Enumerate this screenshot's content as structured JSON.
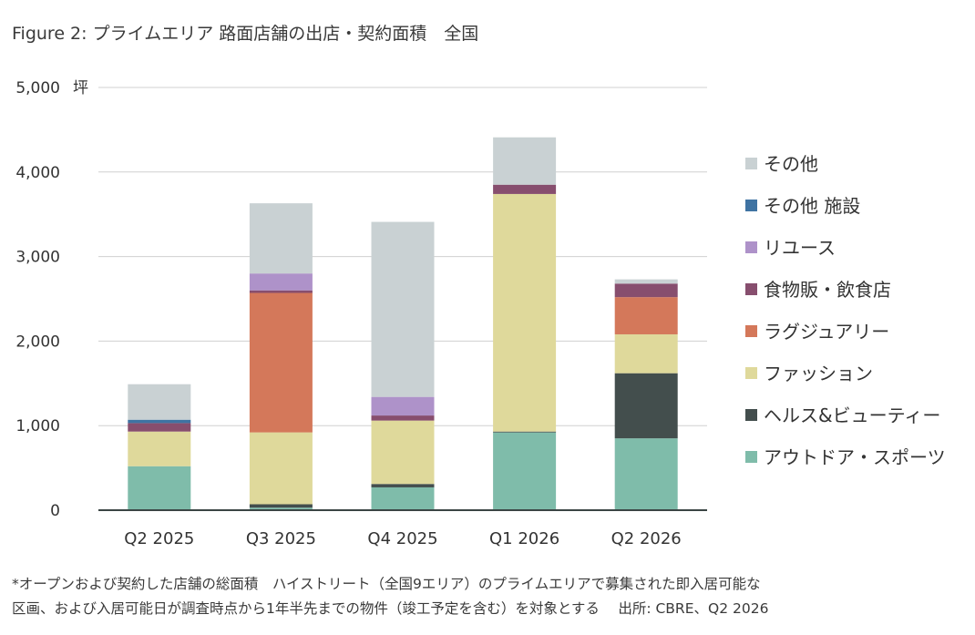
{
  "title": "Figure 2: プライムエリア 路面店舗の出店・契約面積　全国",
  "footnote": {
    "line1": "*オープンおよび契約した店舗の総面積　ハイストリート（全国9エリア）のプライムエリアで募集された即入居可能な",
    "line2": "区画、および入居可能日が調査時点から1年半先までの物件（竣工予定を含む）を対象とする　 出所: CBRE、Q2 2026"
  },
  "chart_data": {
    "type": "bar",
    "stacked": true,
    "title": "Figure 2: プライムエリア 路面店舗の出店・契約面積　全国",
    "ylabel": "坪",
    "ylim": [
      0,
      5000
    ],
    "yticks": [
      0,
      1000,
      2000,
      3000,
      4000,
      5000
    ],
    "ytick_labels": [
      "0",
      "1,000",
      "2,000",
      "3,000",
      "4,000",
      "5,000"
    ],
    "grid": true,
    "legend_position": "right",
    "categories": [
      "Q2 2025",
      "Q3 2025",
      "Q4 2025",
      "Q1 2026",
      "Q2 2026"
    ],
    "series": [
      {
        "name": "アウトドア・スポーツ",
        "color": "#7fbcaa",
        "values": [
          520,
          30,
          270,
          920,
          850
        ]
      },
      {
        "name": "ヘルス&ビューティー",
        "color": "#434e4d",
        "values": [
          0,
          40,
          40,
          10,
          770
        ]
      },
      {
        "name": "ファッション",
        "color": "#dfd99b",
        "values": [
          410,
          850,
          750,
          2810,
          460
        ]
      },
      {
        "name": "ラグジュアリー",
        "color": "#d4785a",
        "values": [
          0,
          1650,
          0,
          0,
          440
        ]
      },
      {
        "name": "食物販・飲食店",
        "color": "#874e6e",
        "values": [
          100,
          30,
          60,
          110,
          160
        ]
      },
      {
        "name": "リユース",
        "color": "#ae92c9",
        "values": [
          0,
          200,
          220,
          0,
          0
        ]
      },
      {
        "name": "その他 施設",
        "color": "#3f73a2",
        "values": [
          40,
          0,
          0,
          0,
          0
        ]
      },
      {
        "name": "その他",
        "color": "#c9d1d3",
        "values": [
          420,
          830,
          2070,
          560,
          50
        ]
      }
    ]
  }
}
